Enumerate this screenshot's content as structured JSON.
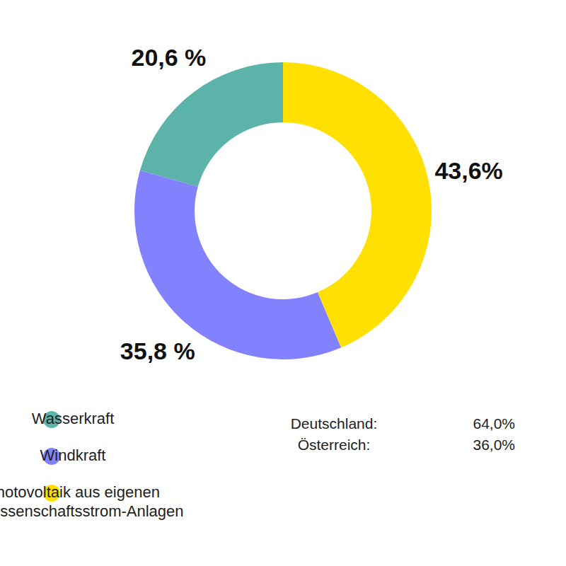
{
  "chart_data": {
    "type": "pie",
    "categories": [
      "Wasserkraft",
      "Windkraft",
      "Photovoltaik aus eigenen\nGenossenschaftsstrom-Anlagen"
    ],
    "values": [
      20.6,
      35.8,
      43.6
    ],
    "value_labels": [
      "20,6 %",
      "35,8 %",
      "43,6%"
    ],
    "colors": [
      "#5cb3a9",
      "#8282ff",
      "#ffe000"
    ],
    "data_labels": true,
    "legend": "bottom-left",
    "annotations": [
      {
        "text": "Deutschland:",
        "value": 64.0,
        "value_label": "64,0%"
      },
      {
        "text": "Österreich:",
        "value": 36.0,
        "value_label": "36,0%"
      }
    ]
  }
}
